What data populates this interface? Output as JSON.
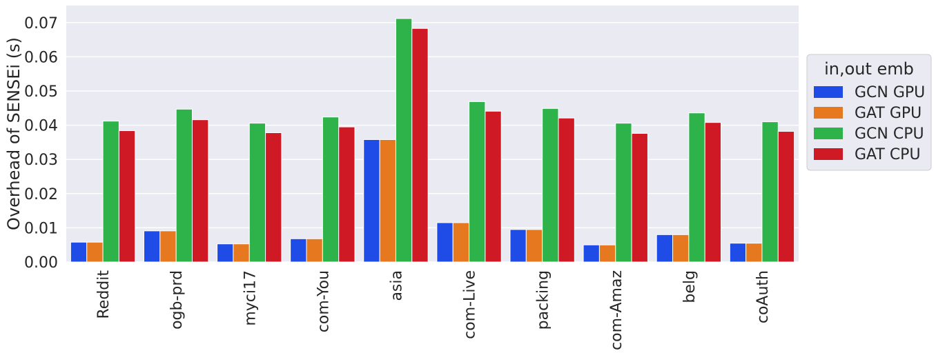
{
  "chart_data": {
    "type": "bar",
    "title": "",
    "xlabel": "",
    "ylabel": "Overhead of SENSEi (s)",
    "ylim": [
      0,
      0.075
    ],
    "yticks": [
      0.0,
      0.01,
      0.02,
      0.03,
      0.04,
      0.05,
      0.06,
      0.07
    ],
    "ytick_labels": [
      "0.00",
      "0.01",
      "0.02",
      "0.03",
      "0.04",
      "0.05",
      "0.06",
      "0.07"
    ],
    "grid": true,
    "legend": {
      "title": "in,out emb",
      "placement": "outside-right"
    },
    "categories": [
      "Reddit",
      "ogb-prd",
      "myci17",
      "com-You",
      "asia",
      "com-Live",
      "packing",
      "com-Amaz",
      "belg",
      "coAuth"
    ],
    "series": [
      {
        "name": "GCN GPU",
        "color": "#1f4ce6",
        "values": [
          0.0058,
          0.0091,
          0.0053,
          0.0068,
          0.0358,
          0.0115,
          0.0095,
          0.005,
          0.008,
          0.0055
        ]
      },
      {
        "name": "GAT GPU",
        "color": "#e6781f",
        "values": [
          0.0058,
          0.0091,
          0.0053,
          0.0068,
          0.0358,
          0.0115,
          0.0095,
          0.005,
          0.008,
          0.0055
        ]
      },
      {
        "name": "GCN CPU",
        "color": "#2db349",
        "values": [
          0.0412,
          0.0447,
          0.0406,
          0.0424,
          0.0712,
          0.0469,
          0.0449,
          0.0406,
          0.0436,
          0.041
        ]
      },
      {
        "name": "GAT CPU",
        "color": "#cf1a26",
        "values": [
          0.0384,
          0.0416,
          0.0378,
          0.0395,
          0.0683,
          0.0441,
          0.0421,
          0.0376,
          0.0408,
          0.0382
        ]
      }
    ]
  }
}
